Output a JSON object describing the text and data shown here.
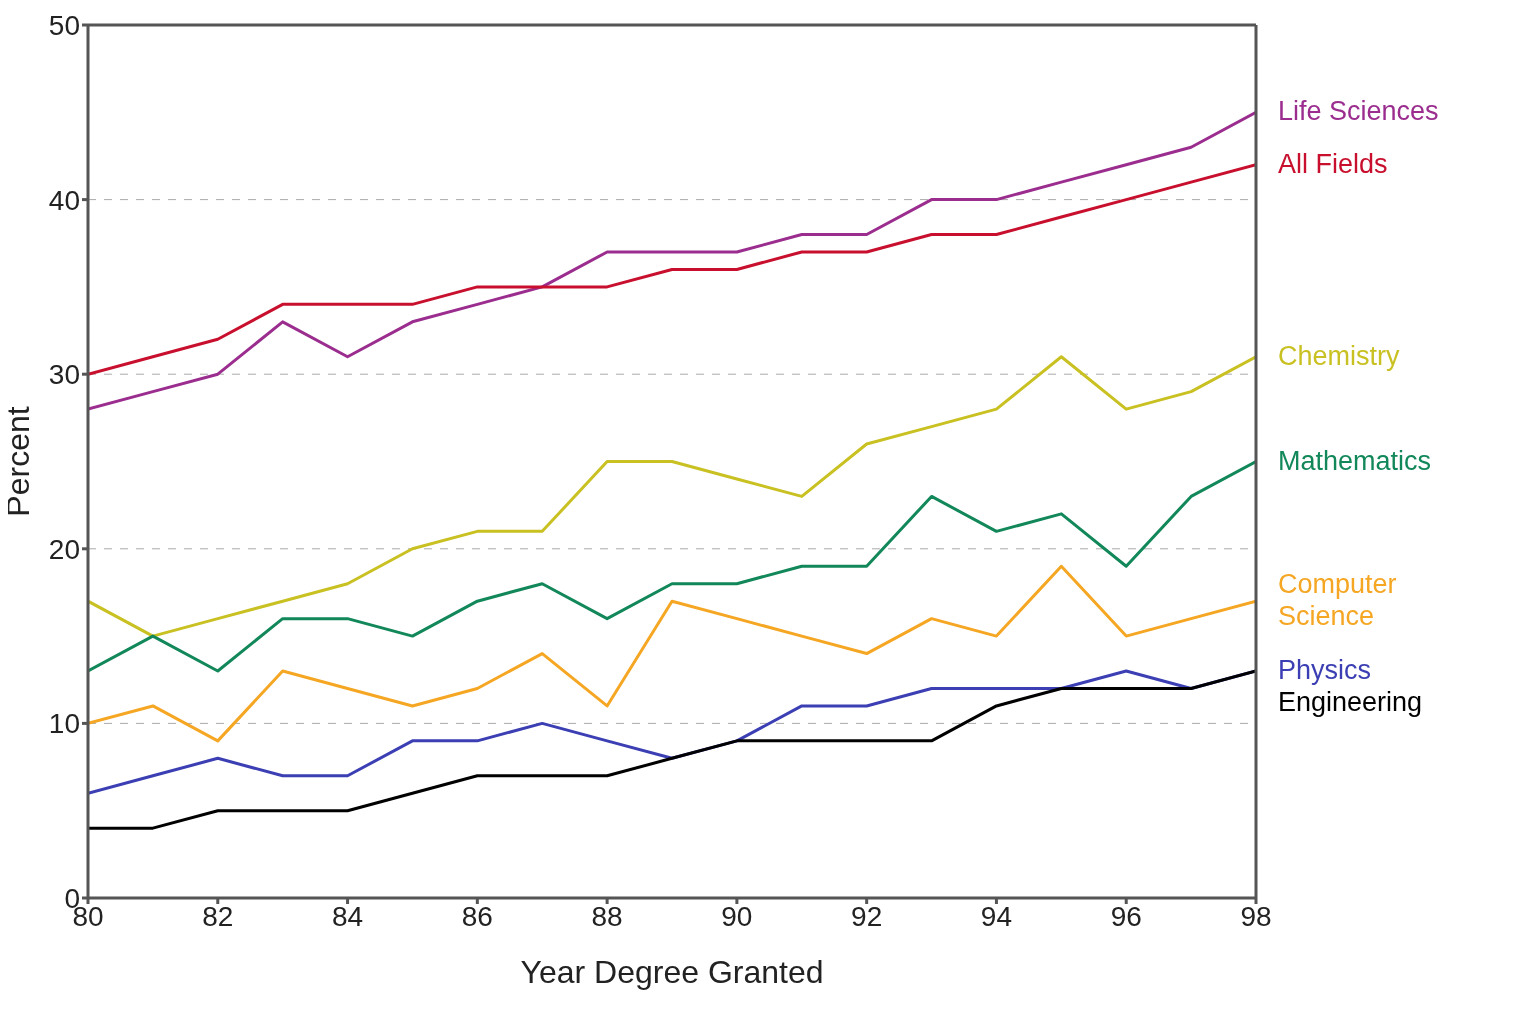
{
  "chart_data": {
    "type": "line",
    "xlabel": "Year Degree Granted",
    "ylabel": "Percent",
    "x": [
      80,
      81,
      82,
      83,
      84,
      85,
      86,
      87,
      88,
      89,
      90,
      91,
      92,
      93,
      94,
      95,
      96,
      97,
      98
    ],
    "xlim": [
      80,
      98
    ],
    "xticks": [
      80,
      82,
      84,
      86,
      88,
      90,
      92,
      94,
      96,
      98
    ],
    "ylim": [
      0,
      50
    ],
    "yticks": [
      0,
      10,
      20,
      30,
      40,
      50
    ],
    "grid": "y",
    "marker": "none",
    "line_style": "solid",
    "legend": false,
    "series": [
      {
        "name": "Life Sciences",
        "color": "#9b2d8f",
        "values": [
          28,
          29,
          30,
          33,
          31,
          33,
          34,
          35,
          37,
          37,
          37,
          38,
          38,
          40,
          40,
          41,
          42,
          43,
          45
        ]
      },
      {
        "name": "All Fields",
        "color": "#c8102e",
        "values": [
          30,
          31,
          32,
          34,
          34,
          34,
          35,
          35,
          35,
          36,
          36,
          37,
          37,
          38,
          38,
          39,
          40,
          41,
          42
        ]
      },
      {
        "name": "Chemistry",
        "color": "#c9c022",
        "values": [
          17,
          15,
          16,
          17,
          18,
          20,
          21,
          21,
          25,
          25,
          24,
          23,
          26,
          27,
          28,
          31,
          28,
          29,
          31
        ]
      },
      {
        "name": "Mathematics",
        "color": "#12885a",
        "values": [
          13,
          15,
          13,
          16,
          16,
          15,
          17,
          18,
          16,
          18,
          18,
          19,
          19,
          23,
          21,
          22,
          19,
          23,
          25
        ]
      },
      {
        "name": "Computer Science",
        "color": "#f5a623",
        "values": [
          10,
          11,
          9,
          13,
          12,
          11,
          12,
          14,
          11,
          17,
          16,
          15,
          14,
          16,
          15,
          19,
          15,
          16,
          17
        ]
      },
      {
        "name": "Physics",
        "color": "#3b3fb3",
        "values": [
          6,
          7,
          8,
          7,
          7,
          9,
          9,
          10,
          9,
          8,
          9,
          11,
          11,
          12,
          12,
          12,
          13,
          12,
          13
        ]
      },
      {
        "name": "Engineering",
        "color": "#000000",
        "values": [
          4,
          4,
          5,
          5,
          5,
          6,
          7,
          7,
          7,
          8,
          9,
          9,
          9,
          9,
          11,
          12,
          12,
          12,
          13
        ]
      }
    ]
  }
}
